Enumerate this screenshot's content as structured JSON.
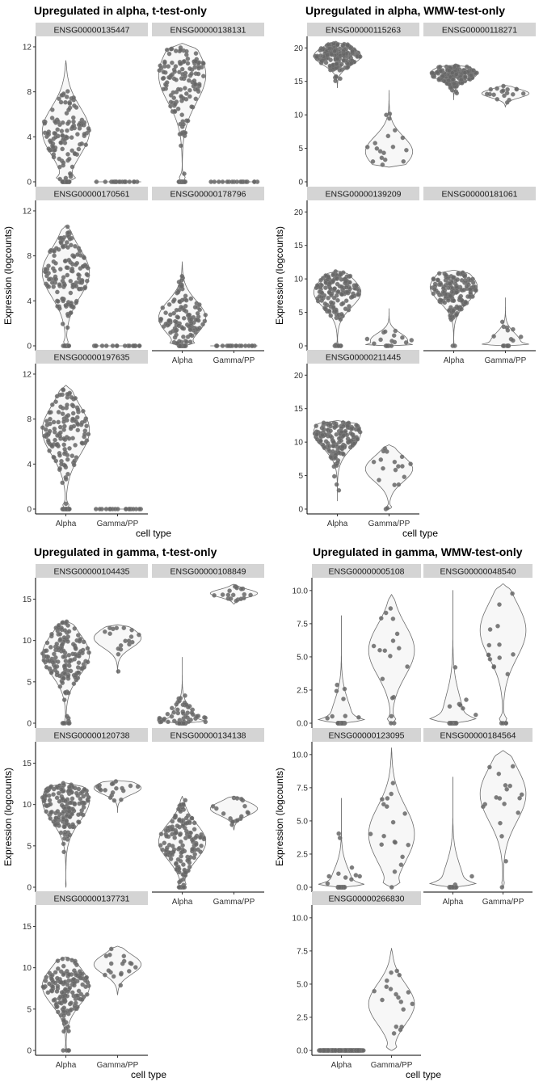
{
  "chart_data": [
    {
      "type": "violin",
      "title": "Upregulated in alpha, t-test-only",
      "ylabel": "Expression (logcounts)",
      "xlabel": "cell type",
      "categories": [
        "Alpha",
        "Gamma/PP"
      ],
      "ylim": [
        0,
        12.5
      ],
      "yticks": [
        0,
        4,
        8,
        12
      ],
      "panels": [
        {
          "gene": "ENSG00000135447",
          "alpha": {
            "min": 0,
            "max": 10.8,
            "median": 4.5,
            "zero_fraction": 0.25
          },
          "gamma": {
            "min": 0,
            "max": 0,
            "median": 0,
            "zero_fraction": 1
          }
        },
        {
          "gene": "ENSG00000138131",
          "alpha": {
            "min": 0,
            "max": 12.3,
            "median": 9.5,
            "zero_fraction": 0.12
          },
          "gamma": {
            "min": 0,
            "max": 0,
            "median": 0,
            "zero_fraction": 1
          }
        },
        {
          "gene": "ENSG00000170561",
          "alpha": {
            "min": 0,
            "max": 10.7,
            "median": 6.5,
            "zero_fraction": 0.08
          },
          "gamma": {
            "min": 0,
            "max": 0,
            "median": 0,
            "zero_fraction": 1
          }
        },
        {
          "gene": "ENSG00000178796",
          "alpha": {
            "min": 0,
            "max": 7.5,
            "median": 2.5,
            "zero_fraction": 0.2
          },
          "gamma": {
            "min": 0,
            "max": 0,
            "median": 0,
            "zero_fraction": 1
          }
        },
        {
          "gene": "ENSG00000197635",
          "alpha": {
            "min": 0,
            "max": 11,
            "median": 7,
            "zero_fraction": 0.12
          },
          "gamma": {
            "min": 0,
            "max": 0,
            "median": 0,
            "zero_fraction": 1
          }
        }
      ]
    },
    {
      "type": "violin",
      "title": "Upregulated in alpha, WMW-test-only",
      "ylabel": "Expression (logcounts)",
      "xlabel": "cell type",
      "categories": [
        "Alpha",
        "Gamma/PP"
      ],
      "ylim": [
        0,
        21
      ],
      "yticks": [
        0,
        5,
        10,
        15,
        20
      ],
      "panels": [
        {
          "gene": "ENSG00000115263",
          "alpha": {
            "min": 14,
            "max": 20.8,
            "median": 18.8,
            "zero_fraction": 0
          },
          "gamma": {
            "min": 2.2,
            "max": 13.7,
            "median": 4.5,
            "zero_fraction": 0
          }
        },
        {
          "gene": "ENSG00000118271",
          "alpha": {
            "min": 12.2,
            "max": 17.4,
            "median": 16.2,
            "zero_fraction": 0
          },
          "gamma": {
            "min": 11.2,
            "max": 14.4,
            "median": 13.2,
            "zero_fraction": 0
          }
        },
        {
          "gene": "ENSG00000139209",
          "alpha": {
            "min": 0,
            "max": 11.2,
            "median": 8,
            "zero_fraction": 0.02
          },
          "gamma": {
            "min": 0,
            "max": 5.6,
            "median": 0.8,
            "zero_fraction": 0.4
          }
        },
        {
          "gene": "ENSG00000181061",
          "alpha": {
            "min": 0,
            "max": 11.3,
            "median": 8.8,
            "zero_fraction": 0.01
          },
          "gamma": {
            "min": 0,
            "max": 7.2,
            "median": 0.5,
            "zero_fraction": 0.55
          }
        },
        {
          "gene": "ENSG00000211445",
          "alpha": {
            "min": 1.2,
            "max": 13.2,
            "median": 11.5,
            "zero_fraction": 0
          },
          "gamma": {
            "min": 0,
            "max": 9.6,
            "median": 6,
            "zero_fraction": 0.1
          }
        }
      ]
    },
    {
      "type": "violin",
      "title": "Upregulated in gamma, t-test-only",
      "ylabel": "Expression (logcounts)",
      "xlabel": "cell type",
      "categories": [
        "Alpha",
        "Gamma/PP"
      ],
      "ylim": [
        0,
        17
      ],
      "yticks": [
        0,
        5,
        10,
        15
      ],
      "panels": [
        {
          "gene": "ENSG00000104435",
          "alpha": {
            "min": 0,
            "max": 12.4,
            "median": 8.3,
            "zero_fraction": 0.04
          },
          "gamma": {
            "min": 6,
            "max": 11.9,
            "median": 10.3,
            "zero_fraction": 0
          }
        },
        {
          "gene": "ENSG00000108849",
          "alpha": {
            "min": 0,
            "max": 8,
            "median": 0,
            "zero_fraction": 0.7
          },
          "gamma": {
            "min": 14.4,
            "max": 16.8,
            "median": 15.7,
            "zero_fraction": 0
          }
        },
        {
          "gene": "ENSG00000120738",
          "alpha": {
            "min": 0,
            "max": 12.6,
            "median": 10.5,
            "zero_fraction": 0.01
          },
          "gamma": {
            "min": 9,
            "max": 12.9,
            "median": 12,
            "zero_fraction": 0
          }
        },
        {
          "gene": "ENSG00000134138",
          "alpha": {
            "min": 0,
            "max": 11,
            "median": 5.5,
            "zero_fraction": 0.1
          },
          "gamma": {
            "min": 6.9,
            "max": 11,
            "median": 9.5,
            "zero_fraction": 0
          }
        },
        {
          "gene": "ENSG00000137731",
          "alpha": {
            "min": 0,
            "max": 11.3,
            "median": 7.8,
            "zero_fraction": 0.02
          },
          "gamma": {
            "min": 6.7,
            "max": 12.6,
            "median": 10.4,
            "zero_fraction": 0
          }
        }
      ]
    },
    {
      "type": "violin",
      "title": "Upregulated in gamma, WMW-test-only",
      "ylabel": "Expression (logcounts)",
      "xlabel": "cell type",
      "categories": [
        "Alpha",
        "Gamma/PP"
      ],
      "ylim": [
        0,
        10.6
      ],
      "yticks": [
        0,
        2.5,
        5,
        7.5,
        10
      ],
      "ytick_labels": [
        "0.0",
        "2.5",
        "5.0",
        "7.5",
        "10.0"
      ],
      "panels": [
        {
          "gene": "ENSG00000005108",
          "alpha": {
            "min": 0,
            "max": 8.1,
            "median": 0,
            "zero_fraction": 0.95
          },
          "gamma": {
            "min": 0,
            "max": 9.7,
            "median": 5.5,
            "zero_fraction": 0.15
          }
        },
        {
          "gene": "ENSG00000048540",
          "alpha": {
            "min": 0,
            "max": 10,
            "median": 0,
            "zero_fraction": 0.98
          },
          "gamma": {
            "min": 0,
            "max": 10.5,
            "median": 7,
            "zero_fraction": 0.15
          }
        },
        {
          "gene": "ENSG00000123095",
          "alpha": {
            "min": 0,
            "max": 6.7,
            "median": 0,
            "zero_fraction": 0.93
          },
          "gamma": {
            "min": 0,
            "max": 10.5,
            "median": 4,
            "zero_fraction": 0.15
          }
        },
        {
          "gene": "ENSG00000184564",
          "alpha": {
            "min": 0,
            "max": 8.3,
            "median": 0,
            "zero_fraction": 0.97
          },
          "gamma": {
            "min": 0,
            "max": 10.3,
            "median": 7,
            "zero_fraction": 0.05
          }
        },
        {
          "gene": "ENSG00000266830",
          "alpha": {
            "min": 0,
            "max": 0,
            "median": 0,
            "zero_fraction": 1
          },
          "gamma": {
            "min": 0,
            "max": 7.7,
            "median": 3.5,
            "zero_fraction": 0.12
          }
        }
      ]
    }
  ]
}
